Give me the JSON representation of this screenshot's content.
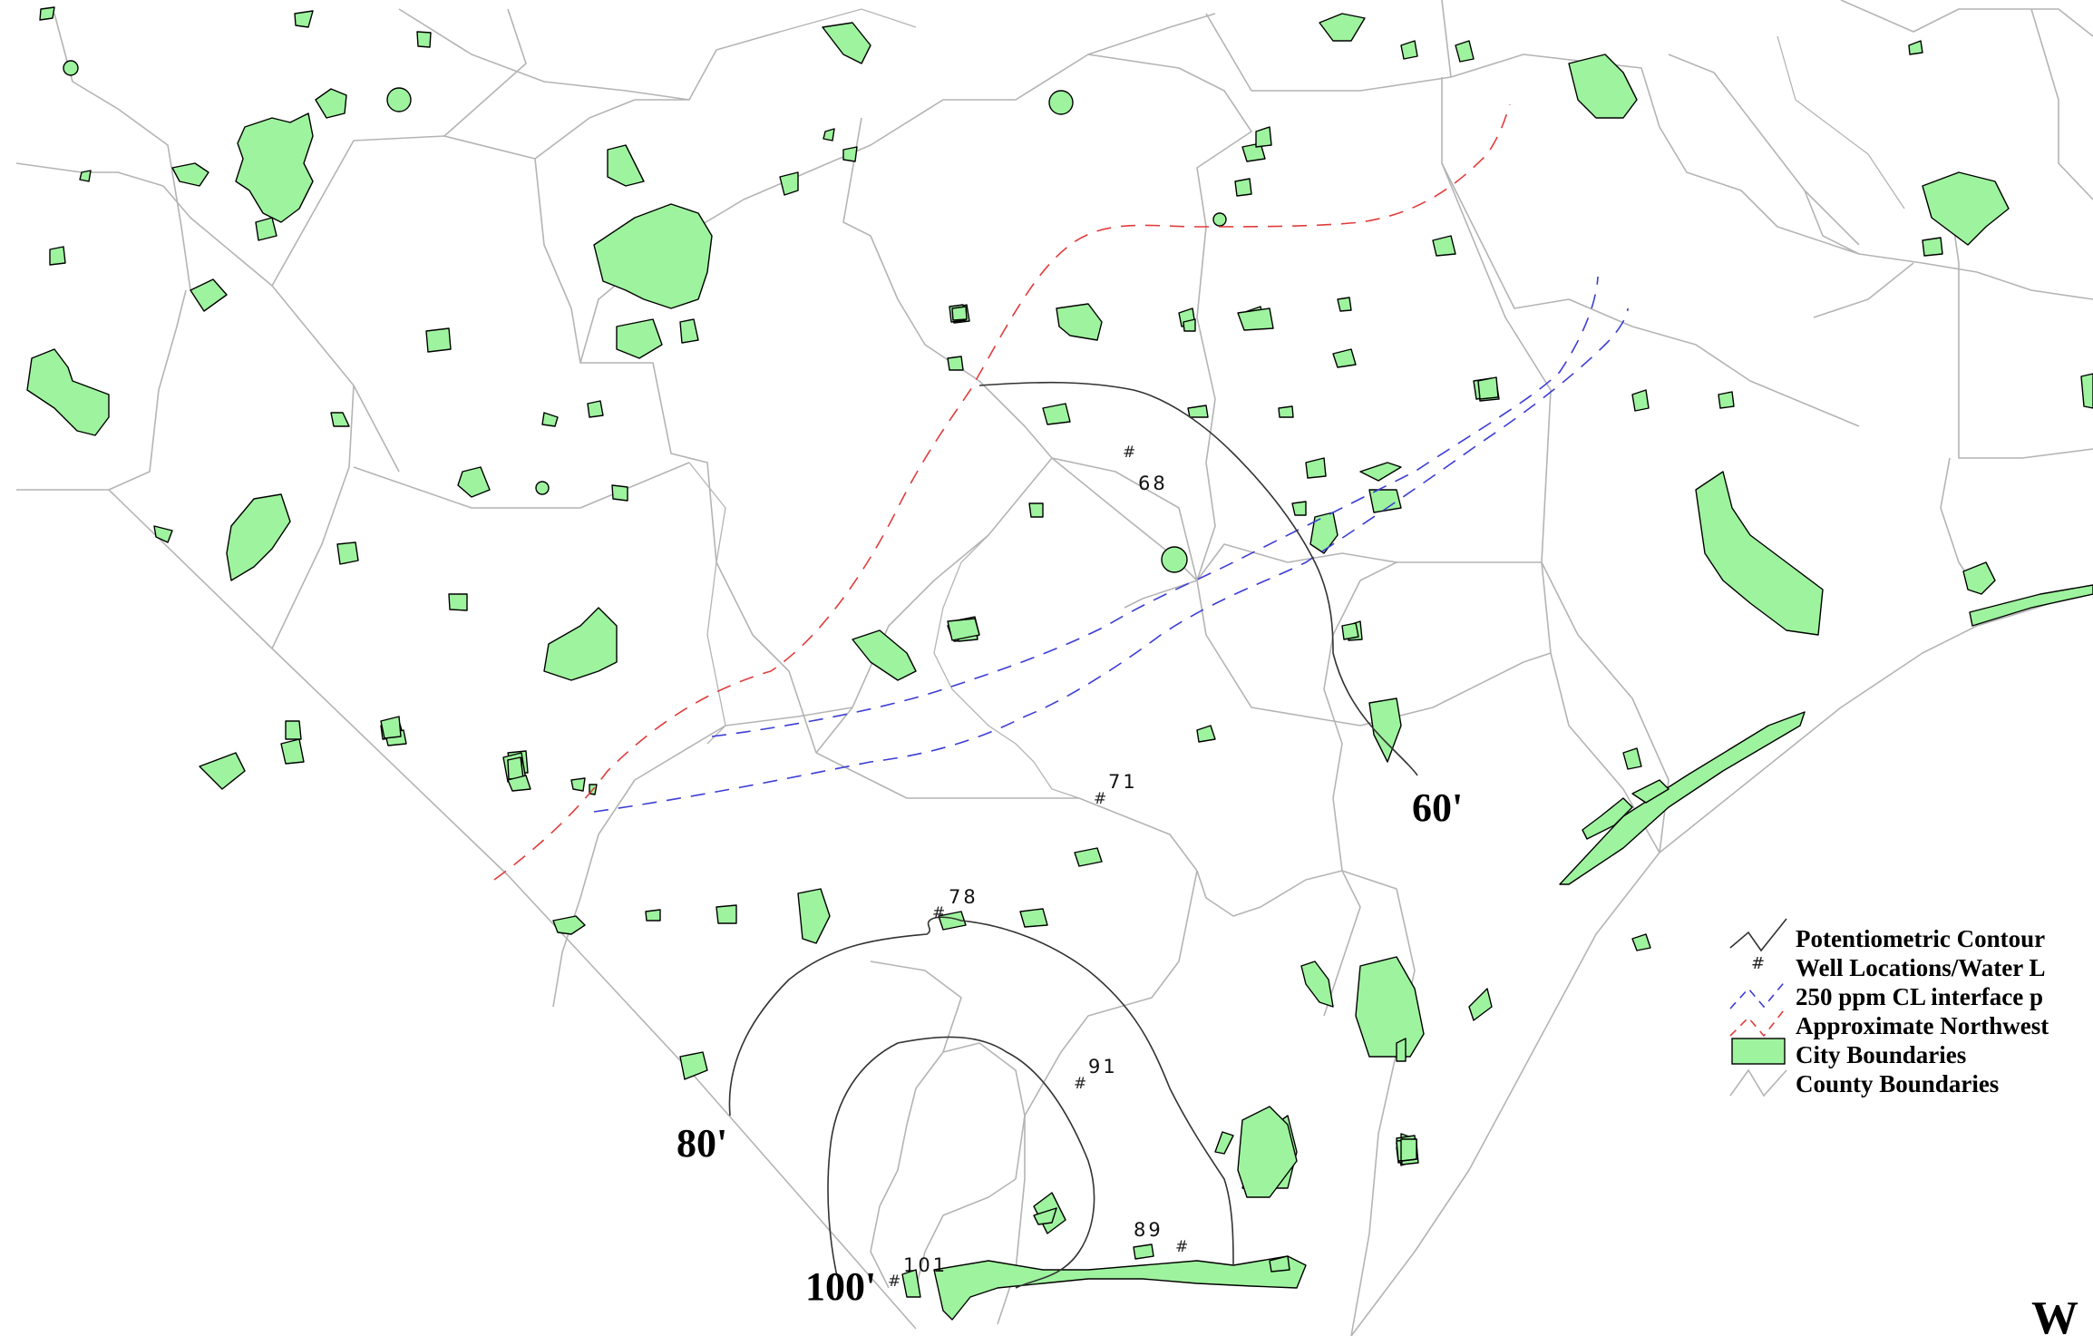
{
  "map": {
    "colors": {
      "city_fill": "#9ef39e",
      "city_stroke": "#000000",
      "county_line": "#b4b4b4",
      "contour_line": "#333333",
      "interface_line": "#3c3cd6",
      "northwest_line": "#e03c3c"
    },
    "contours": [
      {
        "label": "60'"
      },
      {
        "label": "80'"
      },
      {
        "label": "100'"
      }
    ],
    "wells": [
      {
        "id": "68",
        "mark": "#"
      },
      {
        "id": "71",
        "mark": "#"
      },
      {
        "id": "78",
        "mark": "#"
      },
      {
        "id": "91",
        "mark": "#"
      },
      {
        "id": "89",
        "mark": "#"
      },
      {
        "id": "101",
        "mark": "#"
      }
    ],
    "legend": {
      "items": [
        {
          "label": "Potentiometric Contour",
          "symbol": "contour-line"
        },
        {
          "label": "Well Locations/Water L",
          "symbol": "#"
        },
        {
          "label": "250 ppm CL interface p",
          "symbol": "blue-dashed-line"
        },
        {
          "label": "Approximate Northwest",
          "symbol": "red-dashed-line"
        },
        {
          "label": "City Boundaries",
          "symbol": "green-box"
        },
        {
          "label": "County Boundaries",
          "symbol": "grey-line"
        }
      ]
    },
    "north_arrow_letter": "W"
  }
}
